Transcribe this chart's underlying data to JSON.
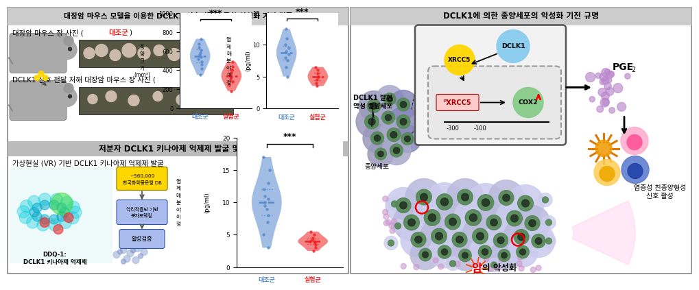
{
  "title_left": "대장암 마우스 모델을 이용한 DCLK1 신호전달을 통한 악성화 기전 검증",
  "title_right": "DCLK1에 의한 종양세포의 악성화 기전 규명",
  "label_section": "저분자 DCLK1 키나아제 억제제 발굴 및 검증",
  "label_vr": "가상현실 (VR) 기반 DCLK1 키나아제 억제제 발굴",
  "label_ddq": "DDQ-1:\nDCLK1 키나아제 억제제",
  "label_560k": "~560,000",
  "label_korean_db": "한국화학물은행 DB",
  "label_pharmaco": "약리작용단 기반\n분자모델링",
  "label_activation": "활성검증",
  "sig_star": "***",
  "ylim1_max": 20,
  "ylim2_max": 1000,
  "ylim3_max": 15,
  "violin1_blue_data": [
    3.0,
    5.0,
    7.0,
    8.0,
    9.0,
    9.5,
    10.0,
    10.5,
    11.0,
    12.0,
    13.0,
    15.0,
    17.0
  ],
  "violin1_red_data": [
    2.5,
    3.0,
    3.5,
    3.8,
    4.0,
    4.0,
    4.2,
    4.5,
    5.0,
    5.5
  ],
  "violin2_blue_data": [
    350,
    420,
    460,
    490,
    520,
    540,
    560,
    580,
    610,
    640,
    680,
    730
  ],
  "violin2_red_data": [
    180,
    240,
    280,
    310,
    330,
    350,
    370,
    400,
    440,
    490
  ],
  "violin3_blue_data": [
    5.0,
    6.5,
    7.5,
    8.0,
    8.5,
    9.0,
    9.5,
    10.0,
    11.0,
    12.5
  ],
  "violin3_red_data": [
    3.5,
    4.0,
    4.5,
    5.0,
    5.0,
    5.5,
    6.0,
    6.5
  ],
  "color_blue": "#5588CC",
  "color_red": "#EE2222",
  "color_title_bg": "#CCCCCC",
  "color_section_bg": "#BBBBBB",
  "fig_bg": "#FFFFFF"
}
